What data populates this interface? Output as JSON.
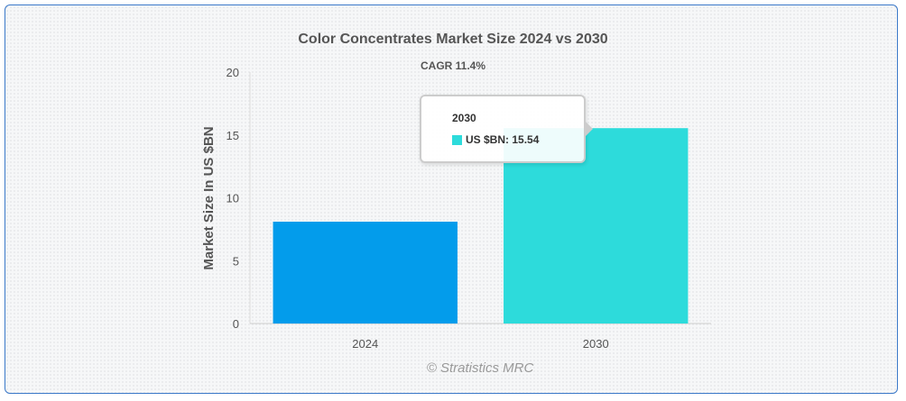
{
  "chart_data": {
    "type": "bar",
    "title": "Color Concentrates Market Size 2024 vs 2030",
    "subtitle": "CAGR 11.4%",
    "ylabel": "Market Size In US $BN",
    "xlabel": "",
    "categories": [
      "2024",
      "2030"
    ],
    "values": [
      8.1,
      15.54
    ],
    "bar_colors": [
      "#039ceb",
      "#2ddbdb"
    ],
    "ylim": [
      0,
      20
    ],
    "yticks": [
      "0",
      "5",
      "10",
      "15",
      "20"
    ],
    "grid": false,
    "legend": "none",
    "credit": "© Stratistics MRC"
  },
  "tooltip": {
    "header": "2030",
    "series_label": "US $BN",
    "value_text": "15.54",
    "swatch_color": "#2ddbdb"
  },
  "colors": {
    "frame_border": "#3a78c8",
    "text": "#555555"
  }
}
